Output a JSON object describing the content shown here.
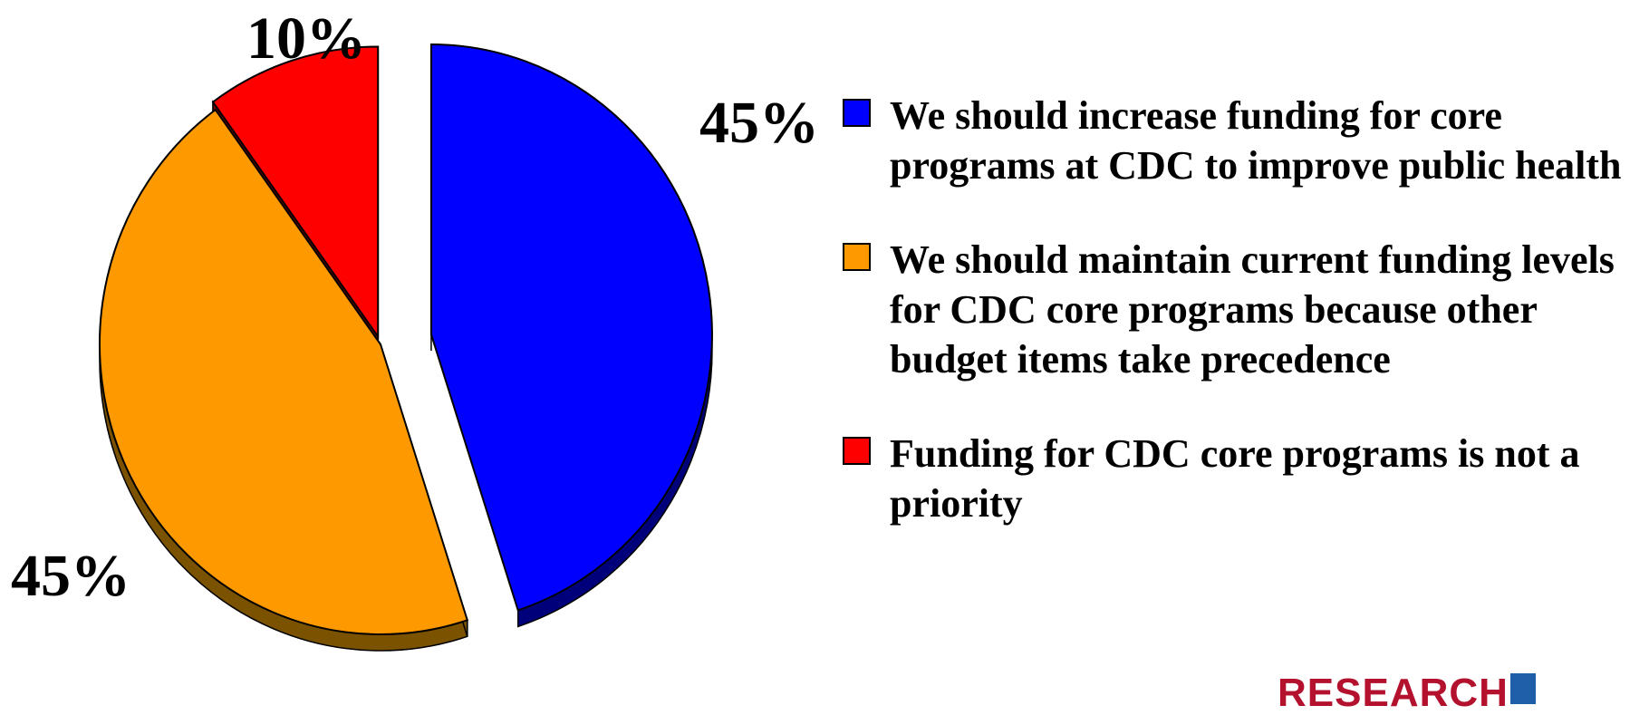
{
  "chart_data": {
    "type": "pie",
    "title": "",
    "slices": [
      {
        "label": "We should increase funding for core programs at CDC to improve public health",
        "value": 45,
        "display": "45%",
        "color": "#0000ff",
        "side_color": "#00007a"
      },
      {
        "label": "We should maintain current funding levels for CDC core programs because other budget items take precedence",
        "value": 45,
        "display": "45%",
        "color": "#ff9900",
        "side_color": "#7a5200"
      },
      {
        "label": "Funding for CDC core programs is not a priority",
        "value": 10,
        "display": "10%",
        "color": "#ff0000",
        "side_color": "#7a0000"
      }
    ],
    "legend_position": "right",
    "exploded": true,
    "style": "3d"
  },
  "legend": [
    {
      "text": "We should increase funding for core programs at CDC to improve public health",
      "color": "#0000ff"
    },
    {
      "text": "We should maintain current funding levels for CDC core programs because other budget items take precedence",
      "color": "#ff9900"
    },
    {
      "text": "Funding for CDC core programs is not a priority",
      "color": "#ff0000"
    }
  ],
  "logo": {
    "text": "RESEARCH",
    "color": "#b3112e",
    "mark_color": "#1f5fa9"
  }
}
